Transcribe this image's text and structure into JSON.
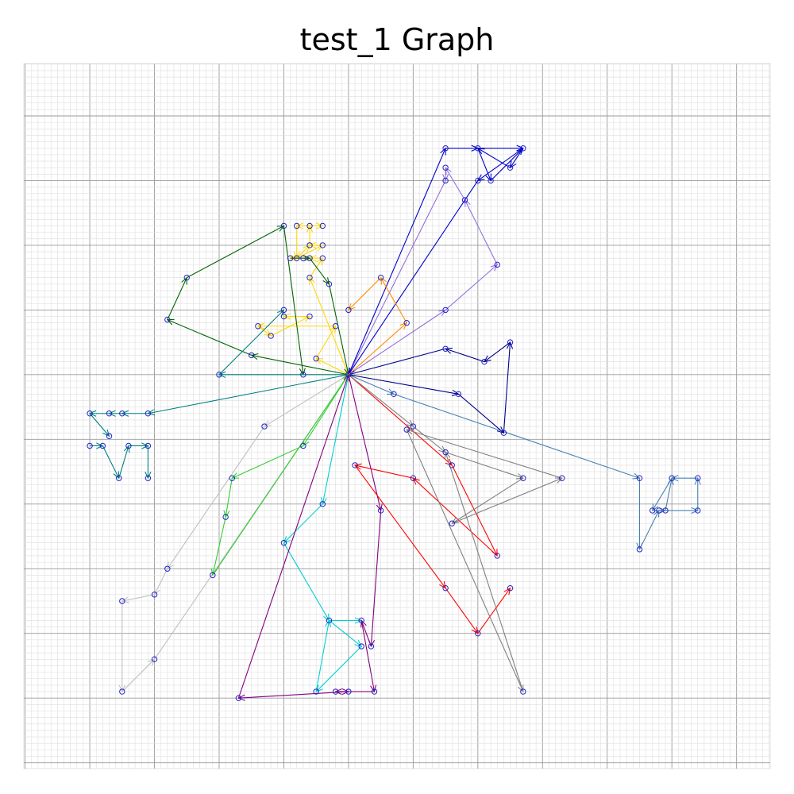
{
  "chart_data": {
    "type": "directed-graph",
    "title": "test_1 Graph",
    "grid": true,
    "xlim": [
      -502,
      652
    ],
    "ylim": [
      -609,
      481
    ],
    "center": [
      0,
      0
    ],
    "branches": [
      {
        "name": "yellow",
        "color": "#ffd700",
        "path": [
          [
            0,
            0
          ],
          [
            -60,
            150
          ],
          [
            -40,
            180
          ],
          [
            -60,
            180
          ],
          [
            -70,
            180
          ],
          [
            -90,
            180
          ],
          [
            -80,
            180
          ],
          [
            -40,
            200
          ],
          [
            -60,
            200
          ],
          [
            -60,
            230
          ],
          [
            -80,
            230
          ],
          [
            -80,
            180
          ],
          [
            -60,
            200
          ],
          [
            -60,
            230
          ],
          [
            -40,
            230
          ]
        ]
      },
      {
        "name": "gold",
        "color": "#ffd700",
        "path": [
          [
            0,
            0
          ],
          [
            -50,
            25
          ],
          [
            -20,
            75
          ],
          [
            -140,
            75
          ],
          [
            -120,
            60
          ],
          [
            -60,
            90
          ],
          [
            -100,
            90
          ]
        ]
      },
      {
        "name": "darkgreen",
        "color": "#006400",
        "path": [
          [
            0,
            0
          ],
          [
            -150,
            30
          ],
          [
            -280,
            85
          ],
          [
            -280,
            85
          ],
          [
            -250,
            150
          ],
          [
            -100,
            230
          ],
          [
            -100,
            230
          ],
          [
            -70,
            0
          ]
        ]
      },
      {
        "name": "darkgreen2",
        "color": "#006400",
        "path": [
          [
            -90,
            180
          ],
          [
            -60,
            180
          ],
          [
            -30,
            140
          ],
          [
            0,
            0
          ]
        ]
      },
      {
        "name": "teal",
        "color": "#008080",
        "path": [
          [
            0,
            0
          ],
          [
            -200,
            0
          ],
          [
            -100,
            100
          ]
        ]
      },
      {
        "name": "teal2",
        "color": "#008080",
        "path": [
          [
            0,
            0
          ],
          [
            -310,
            -60
          ],
          [
            -310,
            -60
          ],
          [
            -350,
            -60
          ],
          [
            -370,
            -60
          ],
          [
            -400,
            -60
          ],
          [
            -370,
            -95
          ]
        ]
      },
      {
        "name": "teal3",
        "color": "#008080",
        "path": [
          [
            -400,
            -110
          ],
          [
            -380,
            -110
          ],
          [
            -355,
            -160
          ],
          [
            -340,
            -110
          ],
          [
            -310,
            -110
          ],
          [
            -310,
            -160
          ]
        ]
      },
      {
        "name": "silver",
        "color": "#c0c0c0",
        "path": [
          [
            0,
            0
          ],
          [
            -130,
            -80
          ],
          [
            -280,
            -300
          ],
          [
            -300,
            -340
          ],
          [
            -350,
            -350
          ],
          [
            -350,
            -490
          ],
          [
            -300,
            -440
          ],
          [
            0,
            0
          ]
        ]
      },
      {
        "name": "lime",
        "color": "#32cd32",
        "path": [
          [
            0,
            0
          ],
          [
            -70,
            -110
          ],
          [
            -180,
            -160
          ],
          [
            -190,
            -220
          ],
          [
            -210,
            -310
          ],
          [
            0,
            0
          ]
        ]
      },
      {
        "name": "cyan",
        "color": "#00ced1",
        "path": [
          [
            0,
            0
          ],
          [
            -40,
            -200
          ],
          [
            -100,
            -260
          ],
          [
            -30,
            -380
          ],
          [
            20,
            -420
          ],
          [
            -50,
            -490
          ],
          [
            -30,
            -380
          ],
          [
            20,
            -380
          ]
        ]
      },
      {
        "name": "purple",
        "color": "#800080",
        "path": [
          [
            0,
            0
          ],
          [
            50,
            -210
          ],
          [
            35,
            -420
          ],
          [
            20,
            -380
          ],
          [
            40,
            -490
          ],
          [
            -20,
            -490
          ],
          [
            0,
            -490
          ],
          [
            -170,
            -500
          ],
          [
            0,
            0
          ]
        ]
      },
      {
        "name": "red",
        "color": "#ff0000",
        "path": [
          [
            0,
            0
          ],
          [
            160,
            -140
          ],
          [
            230,
            -280
          ],
          [
            100,
            -160
          ],
          [
            10,
            -140
          ],
          [
            150,
            -330
          ],
          [
            200,
            -400
          ],
          [
            250,
            -330
          ]
        ]
      },
      {
        "name": "gray",
        "color": "#808080",
        "path": [
          [
            0,
            0
          ],
          [
            100,
            -80
          ],
          [
            150,
            -120
          ],
          [
            270,
            -160
          ],
          [
            160,
            -230
          ],
          [
            330,
            -160
          ],
          [
            90,
            -85
          ],
          [
            270,
            -490
          ],
          [
            150,
            -120
          ]
        ]
      },
      {
        "name": "steelblue",
        "color": "#4682b4",
        "path": [
          [
            0,
            0
          ],
          [
            70,
            -30
          ],
          [
            450,
            -160
          ],
          [
            450,
            -270
          ],
          [
            480,
            -210
          ],
          [
            540,
            -210
          ],
          [
            540,
            -160
          ],
          [
            500,
            -160
          ],
          [
            470,
            -210
          ],
          [
            490,
            -210
          ],
          [
            500,
            -160
          ]
        ]
      },
      {
        "name": "navy",
        "color": "#00008b",
        "path": [
          [
            0,
            0
          ],
          [
            170,
            -30
          ],
          [
            240,
            -90
          ],
          [
            250,
            50
          ],
          [
            210,
            20
          ],
          [
            150,
            40
          ],
          [
            0,
            0
          ]
        ]
      },
      {
        "name": "mediumpurple",
        "color": "#9370db",
        "path": [
          [
            0,
            0
          ],
          [
            150,
            100
          ],
          [
            230,
            170
          ],
          [
            180,
            270
          ],
          [
            150,
            320
          ],
          [
            150,
            300
          ],
          [
            0,
            0
          ]
        ]
      },
      {
        "name": "blue",
        "color": "#0000cd",
        "path": [
          [
            0,
            0
          ],
          [
            150,
            350
          ],
          [
            200,
            350
          ],
          [
            270,
            350
          ],
          [
            250,
            320
          ],
          [
            200,
            350
          ],
          [
            220,
            300
          ],
          [
            270,
            350
          ],
          [
            200,
            300
          ],
          [
            0,
            0
          ]
        ]
      },
      {
        "name": "orange",
        "color": "#ff8c00",
        "path": [
          [
            0,
            0
          ],
          [
            90,
            80
          ],
          [
            50,
            150
          ],
          [
            0,
            100
          ]
        ]
      }
    ]
  }
}
